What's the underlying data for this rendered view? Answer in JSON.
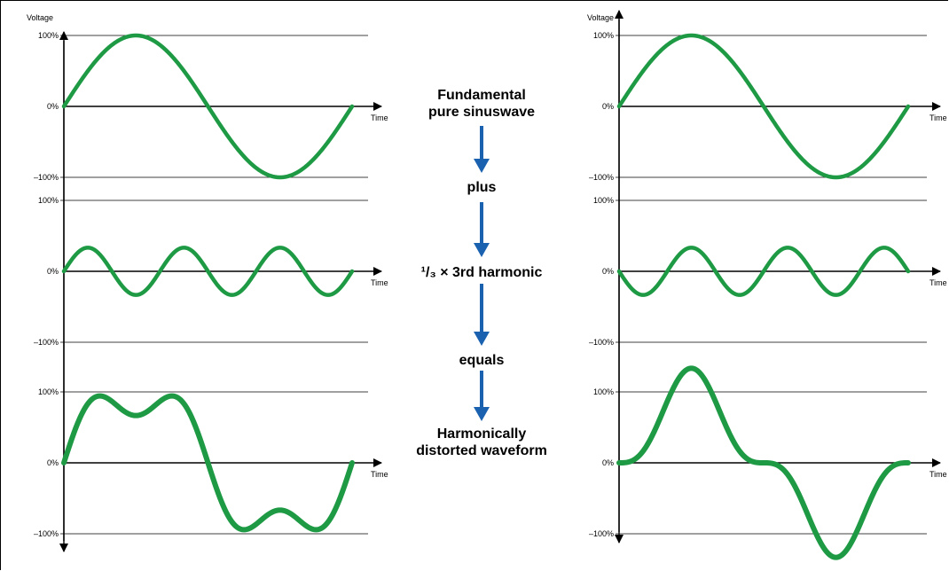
{
  "diagram": {
    "left": {
      "axis_title": "Voltage",
      "panels": [
        {
          "name": "fundamental",
          "ticks": [
            "100%",
            "0%",
            "–100%"
          ],
          "time_label": "Time",
          "components": [
            [
              1,
              1,
              0
            ]
          ]
        },
        {
          "name": "third-harmonic",
          "ticks": [
            "100%",
            "0%",
            "–100%"
          ],
          "time_label": "Time",
          "components": [
            [
              3,
              0.3333,
              0
            ]
          ]
        },
        {
          "name": "sum",
          "ticks": [
            "100%",
            "0%",
            "–100%"
          ],
          "time_label": "Time",
          "components": [
            [
              1,
              1,
              0
            ],
            [
              3,
              0.3333,
              0
            ]
          ]
        }
      ]
    },
    "right": {
      "axis_title": "Voltage",
      "panels": [
        {
          "name": "fundamental",
          "ticks": [
            "100%",
            "0%",
            "–100%"
          ],
          "time_label": "Time",
          "components": [
            [
              1,
              1,
              0
            ]
          ]
        },
        {
          "name": "third-harmonic",
          "ticks": [
            "100%",
            "0%",
            "–100%"
          ],
          "time_label": "Time",
          "components": [
            [
              3,
              0.3333,
              180
            ]
          ]
        },
        {
          "name": "sum",
          "ticks": [
            "100%",
            "0%",
            "–100%"
          ],
          "time_label": "Time",
          "components": [
            [
              1,
              1,
              0
            ],
            [
              3,
              0.3333,
              180
            ]
          ]
        }
      ]
    },
    "steps": {
      "fundamental": "Fundamental\npure sinuswave",
      "plus": "plus",
      "harmonic": "¹/₃ × 3rd harmonic",
      "equals": "equals",
      "result": "Harmonically\ndistorted waveform"
    },
    "colors": {
      "wave": "#1e9a45",
      "arrow": "#1a62b0",
      "gridline": "#000000"
    }
  }
}
